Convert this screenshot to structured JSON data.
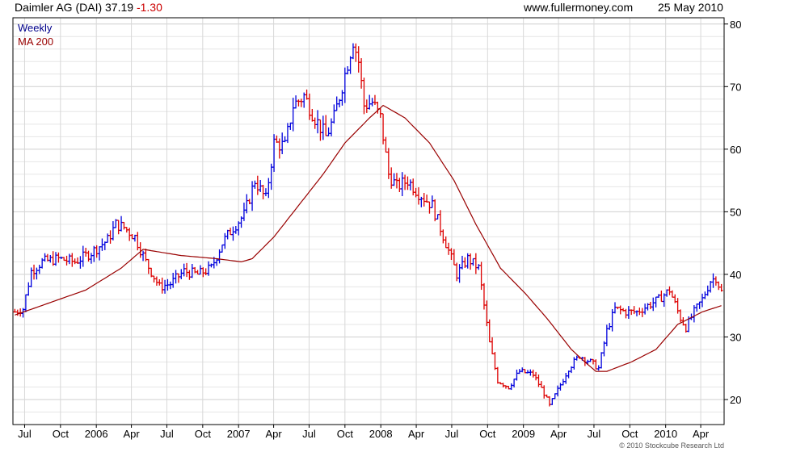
{
  "header": {
    "symbol": "Daimler AG (DAI)",
    "price": "37.19",
    "change": "-1.30",
    "site": "www.fullermoney.com",
    "date": "25 May 2010"
  },
  "legend": {
    "weekly": "Weekly",
    "ma": "MA 200"
  },
  "copyright": "© 2010 Stockcube Research Ltd",
  "colors": {
    "up": "#0000dd",
    "down": "#dd0000",
    "ma": "#990000",
    "grid": "#d8d8d8",
    "frame": "#000000",
    "change": "#cc0000",
    "legend_weekly": "#00008b",
    "legend_ma": "#990000"
  },
  "chart_data": {
    "type": "ohlc",
    "frequency": "weekly",
    "ylim": [
      16,
      81
    ],
    "y_ticks": [
      20,
      30,
      40,
      50,
      60,
      70,
      80
    ],
    "x_labels": [
      "Jul",
      "Oct",
      "2006",
      "Apr",
      "Jul",
      "Oct",
      "2007",
      "Apr",
      "Jul",
      "Oct",
      "2008",
      "Apr",
      "Jul",
      "Oct",
      "2009",
      "Apr",
      "Jul",
      "Oct",
      "2010",
      "Apr"
    ],
    "x_label_dates": [
      "2005-07-01",
      "2005-10-01",
      "2006-01-01",
      "2006-04-01",
      "2006-07-01",
      "2006-10-01",
      "2007-01-01",
      "2007-04-01",
      "2007-07-01",
      "2007-10-01",
      "2008-01-01",
      "2008-04-01",
      "2008-07-01",
      "2008-10-01",
      "2009-01-01",
      "2009-04-01",
      "2009-07-01",
      "2009-10-01",
      "2010-01-01",
      "2010-04-01"
    ],
    "x_range": [
      "2005-06-01",
      "2010-05-31"
    ],
    "grid": true,
    "price_keyframes": [
      [
        "2005-06-06",
        34.0
      ],
      [
        "2005-06-27",
        34.5
      ],
      [
        "2005-07-18",
        40.5
      ],
      [
        "2005-08-15",
        42.0
      ],
      [
        "2005-09-26",
        42.5
      ],
      [
        "2005-11-07",
        42.0
      ],
      [
        "2005-12-19",
        43.5
      ],
      [
        "2006-01-30",
        45.5
      ],
      [
        "2006-02-20",
        48.0
      ],
      [
        "2006-03-13",
        47.5
      ],
      [
        "2006-04-10",
        46.0
      ],
      [
        "2006-05-08",
        42.0
      ],
      [
        "2006-06-12",
        38.0
      ],
      [
        "2006-07-10",
        38.5
      ],
      [
        "2006-08-14",
        40.5
      ],
      [
        "2006-09-18",
        40.0
      ],
      [
        "2006-10-23",
        41.0
      ],
      [
        "2006-11-20",
        45.0
      ],
      [
        "2006-12-18",
        47.5
      ],
      [
        "2007-01-15",
        49.5
      ],
      [
        "2007-02-12",
        55.0
      ],
      [
        "2007-03-12",
        52.0
      ],
      [
        "2007-04-02",
        61.0
      ],
      [
        "2007-04-30",
        60.5
      ],
      [
        "2007-05-21",
        67.0
      ],
      [
        "2007-06-18",
        68.5
      ],
      [
        "2007-07-16",
        65.0
      ],
      [
        "2007-08-13",
        62.0
      ],
      [
        "2007-09-03",
        65.0
      ],
      [
        "2007-10-01",
        72.0
      ],
      [
        "2007-10-22",
        77.5
      ],
      [
        "2007-11-05",
        74.0
      ],
      [
        "2007-11-19",
        67.0
      ],
      [
        "2007-12-10",
        67.5
      ],
      [
        "2007-12-31",
        65.0
      ],
      [
        "2008-01-21",
        56.0
      ],
      [
        "2008-02-11",
        54.0
      ],
      [
        "2008-03-10",
        55.0
      ],
      [
        "2008-04-07",
        53.0
      ],
      [
        "2008-05-12",
        51.0
      ],
      [
        "2008-06-16",
        45.0
      ],
      [
        "2008-07-14",
        40.0
      ],
      [
        "2008-08-11",
        42.5
      ],
      [
        "2008-09-08",
        41.0
      ],
      [
        "2008-10-06",
        29.0
      ],
      [
        "2008-10-27",
        23.0
      ],
      [
        "2008-11-24",
        22.0
      ],
      [
        "2008-12-22",
        24.5
      ],
      [
        "2009-01-26",
        24.0
      ],
      [
        "2009-02-23",
        21.0
      ],
      [
        "2009-03-09",
        19.0
      ],
      [
        "2009-03-30",
        21.5
      ],
      [
        "2009-04-27",
        25.0
      ],
      [
        "2009-05-25",
        27.0
      ],
      [
        "2009-06-22",
        26.0
      ],
      [
        "2009-07-13",
        25.0
      ],
      [
        "2009-08-03",
        31.0
      ],
      [
        "2009-08-24",
        34.5
      ],
      [
        "2009-09-21",
        34.0
      ],
      [
        "2009-10-19",
        34.0
      ],
      [
        "2009-11-16",
        35.0
      ],
      [
        "2009-12-14",
        36.0
      ],
      [
        "2010-01-11",
        37.5
      ],
      [
        "2010-02-08",
        33.0
      ],
      [
        "2010-02-22",
        31.5
      ],
      [
        "2010-03-15",
        34.0
      ],
      [
        "2010-04-05",
        36.0
      ],
      [
        "2010-04-26",
        39.0
      ],
      [
        "2010-05-10",
        39.5
      ],
      [
        "2010-05-24",
        37.19
      ]
    ],
    "ma_keyframes": [
      [
        "2005-06-06",
        33.5
      ],
      [
        "2005-09-05",
        35.5
      ],
      [
        "2005-12-05",
        37.5
      ],
      [
        "2006-03-06",
        41.0
      ],
      [
        "2006-05-01",
        44.0
      ],
      [
        "2006-08-07",
        43.0
      ],
      [
        "2006-11-06",
        42.5
      ],
      [
        "2007-01-08",
        42.0
      ],
      [
        "2007-02-05",
        42.5
      ],
      [
        "2007-04-02",
        46.0
      ],
      [
        "2007-06-04",
        51.0
      ],
      [
        "2007-08-06",
        56.0
      ],
      [
        "2007-10-01",
        61.0
      ],
      [
        "2007-12-03",
        65.0
      ],
      [
        "2008-01-07",
        67.0
      ],
      [
        "2008-03-03",
        65.0
      ],
      [
        "2008-05-05",
        61.0
      ],
      [
        "2008-07-07",
        55.0
      ],
      [
        "2008-09-01",
        48.0
      ],
      [
        "2008-11-03",
        41.0
      ],
      [
        "2009-01-05",
        37.0
      ],
      [
        "2009-03-02",
        33.0
      ],
      [
        "2009-05-04",
        28.0
      ],
      [
        "2009-06-08",
        26.0
      ],
      [
        "2009-07-06",
        24.5
      ],
      [
        "2009-08-03",
        24.5
      ],
      [
        "2009-10-05",
        26.0
      ],
      [
        "2009-12-07",
        28.0
      ],
      [
        "2010-02-01",
        32.0
      ],
      [
        "2010-04-05",
        34.0
      ],
      [
        "2010-05-24",
        35.0
      ]
    ]
  }
}
